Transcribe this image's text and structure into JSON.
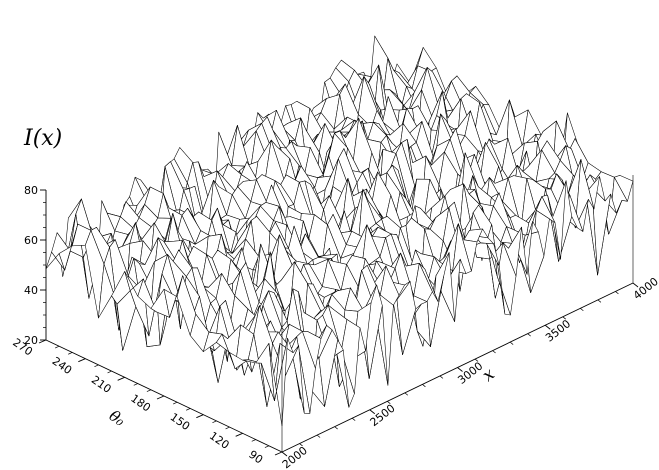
{
  "chart_data": {
    "type": "surface",
    "zlabel": "I(x)",
    "xlabel": "x",
    "ylabel": "θ₀",
    "xlim": [
      2000,
      4000
    ],
    "ylim": [
      90,
      270
    ],
    "zlim": [
      20,
      80
    ],
    "x_ticks": [
      2000,
      2500,
      3000,
      3500,
      4000
    ],
    "y_ticks": [
      90,
      120,
      150,
      180,
      210,
      240,
      270
    ],
    "z_ticks": [
      20,
      40,
      60,
      80
    ],
    "x_tick_labels": [
      "2000",
      "2500",
      "3000",
      "3500",
      "4000"
    ],
    "y_tick_labels": [
      "90",
      "120",
      "150",
      "180",
      "210",
      "240",
      "270"
    ],
    "z_tick_labels": [
      "20",
      "40",
      "60",
      "80"
    ],
    "surface": {
      "x_samples": 64,
      "y_samples": 19,
      "mean_level": 58,
      "level_range": [
        30,
        80
      ],
      "trend": "values increase slightly toward high x and high θ₀, with deep sharp dips near the front (low θ₀) edge"
    }
  }
}
